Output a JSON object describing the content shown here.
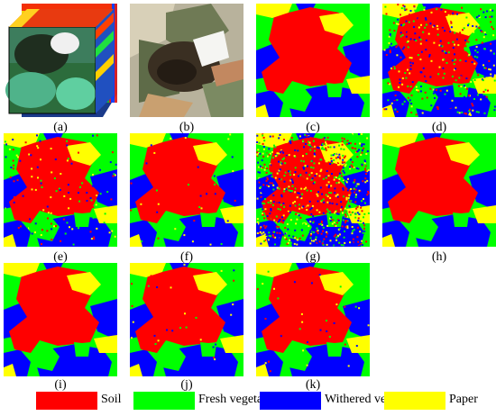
{
  "panels": [
    {
      "id": "a",
      "label": "(a)",
      "kind": "hypercube"
    },
    {
      "id": "b",
      "label": "(b)",
      "kind": "photo"
    },
    {
      "id": "c",
      "label": "(c)",
      "kind": "map",
      "noise": "none"
    },
    {
      "id": "d",
      "label": "(d)",
      "kind": "map",
      "noise": "heavy"
    },
    {
      "id": "e",
      "label": "(e)",
      "kind": "map",
      "noise": "medium"
    },
    {
      "id": "f",
      "label": "(f)",
      "kind": "map",
      "noise": "light"
    },
    {
      "id": "g",
      "label": "(g)",
      "kind": "map",
      "noise": "very-heavy"
    },
    {
      "id": "h",
      "label": "(h)",
      "kind": "map",
      "noise": "none"
    },
    {
      "id": "i",
      "label": "(i)",
      "kind": "map",
      "noise": "none"
    },
    {
      "id": "j",
      "label": "(j)",
      "kind": "map",
      "noise": "light"
    },
    {
      "id": "k",
      "label": "(k)",
      "kind": "map",
      "noise": "light"
    }
  ],
  "legend": [
    {
      "label": "Soil",
      "color": "#ff0000"
    },
    {
      "label": "Fresh vegetation",
      "color": "#00ff00"
    },
    {
      "label": "Withered vegetation",
      "color": "#0000ff"
    },
    {
      "label": "Paper",
      "color": "#ffff00"
    }
  ],
  "colors": {
    "soil": "#ff0000",
    "fresh": "#00ff00",
    "withered": "#0000ff",
    "paper": "#ffff00"
  }
}
